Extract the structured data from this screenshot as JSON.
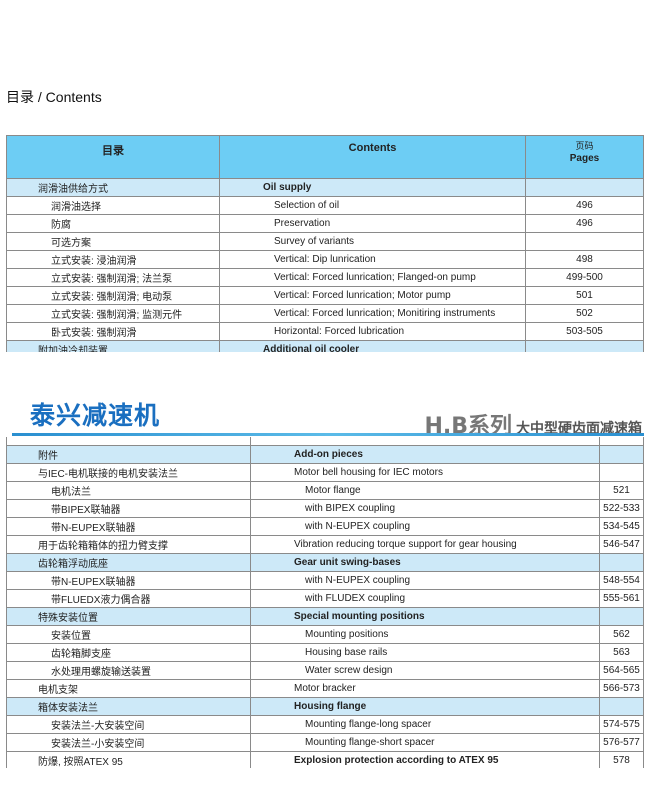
{
  "title": "目录 / Contents",
  "header": {
    "col1": "目录",
    "col2": "Contents",
    "col3_cn": "页码",
    "col3_en": "Pages"
  },
  "brand": {
    "name": "泰兴减速机",
    "series": "H.B系列",
    "series_desc": "大中型硬齿面减速箱",
    "accent": "#1a6fc0"
  },
  "table1": [
    {
      "cn": "润滑油供给方式",
      "en": "Oil supply",
      "page": "",
      "section": true,
      "level": 0
    },
    {
      "cn": "润滑油选择",
      "en": "Selection of oil",
      "page": "496",
      "level": 1
    },
    {
      "cn": "防腐",
      "en": "Preservation",
      "page": "496",
      "level": 1
    },
    {
      "cn": "可选方案",
      "en": "Survey of variants",
      "page": "",
      "level": 1
    },
    {
      "cn": "立式安装: 浸油润滑",
      "en": "Vertical: Dip lunrication",
      "page": "498",
      "level": 1
    },
    {
      "cn": "立式安装: 强制润滑; 法兰泵",
      "en": "Vertical: Forced lunrication; Flanged-on pump",
      "page": "499-500",
      "level": 1
    },
    {
      "cn": "立式安装: 强制润滑; 电动泵",
      "en": "Vertical: Forced lunrication; Motor pump",
      "page": "501",
      "level": 1
    },
    {
      "cn": "立式安装: 强制润滑; 监测元件",
      "en": "Vertical: Forced lunrication; Monitiring instruments",
      "page": "502",
      "level": 1
    },
    {
      "cn": "卧式安装: 强制润滑",
      "en": "Horizontal: Forced lubrication",
      "page": "503-505",
      "level": 1
    },
    {
      "cn": "附加油冷却装置",
      "en": "Additional oil cooler",
      "page": "",
      "section": true,
      "level": 0
    }
  ],
  "table2": [
    {
      "cn": "",
      "en": "",
      "page": "",
      "level": 0
    },
    {
      "cn": "附件",
      "en": "Add-on pieces",
      "page": "",
      "section": true,
      "level": 0
    },
    {
      "cn": "与IEC-电机联接的电机安装法兰",
      "en": "Motor bell housing for IEC motors",
      "page": "",
      "level": 0
    },
    {
      "cn": "电机法兰",
      "en": "Motor flange",
      "page": "521",
      "level": 1
    },
    {
      "cn": "带BIPEX联轴器",
      "en": "with BIPEX coupling",
      "page": "522-533",
      "level": 1
    },
    {
      "cn": "带N-EUPEX联轴器",
      "en": "with N-EUPEX coupling",
      "page": "534-545",
      "level": 1
    },
    {
      "cn": "用于齿轮箱箱体的扭力臂支撑",
      "en": "Vibration reducing torque support for gear housing",
      "page": "546-547",
      "level": 0
    },
    {
      "cn": "齿轮箱浮动底座",
      "en": "Gear unit swing-bases",
      "page": "",
      "section": true,
      "level": 0
    },
    {
      "cn": "带N-EUPEX联轴器",
      "en": "with N-EUPEX coupling",
      "page": "548-554",
      "level": 1
    },
    {
      "cn": "带FLUEDX液力偶合器",
      "en": "with FLUDEX coupling",
      "page": "555-561",
      "level": 1
    },
    {
      "cn": "特殊安装位置",
      "en": "Special mounting positions",
      "page": "",
      "section": true,
      "level": 0
    },
    {
      "cn": "安装位置",
      "en": "Mounting positions",
      "page": "562",
      "level": 1
    },
    {
      "cn": "齿轮箱脚支座",
      "en": "Housing base rails",
      "page": "563",
      "level": 1
    },
    {
      "cn": "水处理用螺旋输送装置",
      "en": "Water screw design",
      "page": "564-565",
      "level": 1
    },
    {
      "cn": "电机支架",
      "en": "Motor bracker",
      "page": "566-573",
      "level": 0
    },
    {
      "cn": "箱体安装法兰",
      "en": "Housing flange",
      "page": "",
      "section": true,
      "level": 0
    },
    {
      "cn": "安装法兰-大安装空间",
      "en": "Mounting flange-long spacer",
      "page": "574-575",
      "level": 1
    },
    {
      "cn": "安装法兰-小安装空间",
      "en": "Mounting flange-short spacer",
      "page": "576-577",
      "level": 1
    },
    {
      "cn": "防爆, 按照ATEX 95",
      "en": "Explosion protection according to ATEX 95",
      "page": "578",
      "bold": true,
      "level": 0
    }
  ]
}
